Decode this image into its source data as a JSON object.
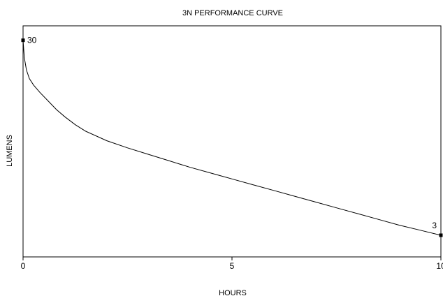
{
  "chart_data": {
    "type": "line",
    "title": "3N PERFORMANCE CURVE",
    "xlabel": "HOURS",
    "ylabel": "LUMENS",
    "xlim": [
      0,
      10
    ],
    "ylim": [
      0,
      32
    ],
    "grid": false,
    "x_ticks": [
      {
        "value": 0,
        "label": "0"
      },
      {
        "value": 5,
        "label": "5"
      },
      {
        "value": 10,
        "label": "10"
      }
    ],
    "series": [
      {
        "x": [
          0,
          0.03,
          0.08,
          0.15,
          0.25,
          0.4,
          0.6,
          0.8,
          1.0,
          1.25,
          1.5,
          2.0,
          2.5,
          3.0,
          3.5,
          4.0,
          4.5,
          5.0,
          5.5,
          6.0,
          6.5,
          7.0,
          7.5,
          8.0,
          8.5,
          9.0,
          9.5,
          10.0
        ],
        "y": [
          30,
          27.6,
          25.9,
          24.7,
          23.8,
          22.8,
          21.6,
          20.4,
          19.4,
          18.3,
          17.4,
          16.1,
          15.1,
          14.2,
          13.3,
          12.4,
          11.6,
          10.8,
          10.0,
          9.2,
          8.4,
          7.6,
          6.8,
          6.0,
          5.2,
          4.4,
          3.7,
          3.0
        ],
        "color": "#000000"
      }
    ],
    "annotations": [
      {
        "x": 0,
        "y": 30,
        "label": "30"
      },
      {
        "x": 10,
        "y": 3,
        "label": "3"
      }
    ]
  }
}
